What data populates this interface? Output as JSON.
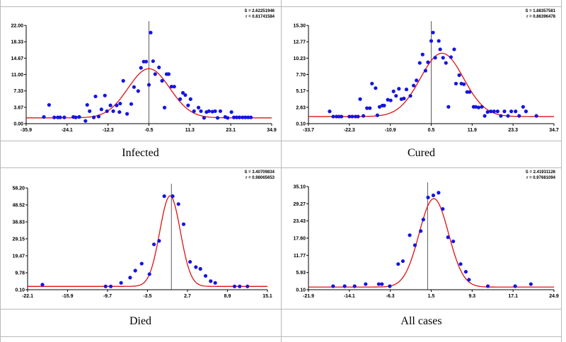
{
  "colors": {
    "points": "#1515e0",
    "curve": "#e01010",
    "axis": "#000000",
    "mean_line": "#333333"
  },
  "charts": [
    {
      "caption": "Infected",
      "stats": {
        "s": "S = 2.62251946",
        "r": "r = 0.81741584"
      },
      "chart_data": {
        "type": "scatter",
        "title": "",
        "xlabel": "",
        "ylabel": "",
        "xlim": [
          -35.9,
          34.9
        ],
        "ylim": [
          0.0,
          22.0
        ],
        "xticks": [
          "-35.9",
          "-24.1",
          "-12.3",
          "-0.5",
          "11.3",
          "23.1",
          "34.9"
        ],
        "yticks": [
          "0.00",
          "3.67",
          "7.33",
          "11.00",
          "14.67",
          "18.33",
          "22.00"
        ],
        "mean_x": -0.5,
        "curve": {
          "mu": -0.5,
          "sigma": 6.0,
          "amplitude": 11.0,
          "base": 1.3
        },
        "points": [
          [
            -30.8,
            1.5
          ],
          [
            -29.3,
            4.2
          ],
          [
            -27.8,
            1.4
          ],
          [
            -26.8,
            1.4
          ],
          [
            -26.1,
            1.4
          ],
          [
            -24.9,
            1.4
          ],
          [
            -22.3,
            1.5
          ],
          [
            -21.6,
            1.4
          ],
          [
            -20.6,
            1.5
          ],
          [
            -18.8,
            0.6
          ],
          [
            -18.3,
            4.2
          ],
          [
            -17.6,
            2.8
          ],
          [
            -16.4,
            1.4
          ],
          [
            -15.9,
            6.1
          ],
          [
            -15.0,
            1.6
          ],
          [
            -14.2,
            3.2
          ],
          [
            -13.2,
            6.3
          ],
          [
            -12.6,
            2.8
          ],
          [
            -11.6,
            4.1
          ],
          [
            -10.8,
            2.8
          ],
          [
            -9.8,
            4.1
          ],
          [
            -9.0,
            2.6
          ],
          [
            -8.8,
            4.5
          ],
          [
            -7.9,
            9.6
          ],
          [
            -6.8,
            2.2
          ],
          [
            -5.6,
            4.4
          ],
          [
            -4.8,
            8.2
          ],
          [
            -3.6,
            7.3
          ],
          [
            -2.8,
            12.5
          ],
          [
            -2.0,
            13.9
          ],
          [
            -1.3,
            13.9
          ],
          [
            -0.5,
            8.7
          ],
          [
            0.0,
            20.4
          ],
          [
            0.7,
            14.0
          ],
          [
            1.3,
            11.1
          ],
          [
            2.4,
            12.6
          ],
          [
            3.3,
            9.6
          ],
          [
            4.0,
            3.6
          ],
          [
            4.6,
            11.1
          ],
          [
            5.2,
            11.1
          ],
          [
            6.0,
            8.3
          ],
          [
            6.8,
            8.3
          ],
          [
            8.5,
            5.5
          ],
          [
            9.3,
            6.9
          ],
          [
            10.0,
            6.4
          ],
          [
            10.8,
            4.1
          ],
          [
            11.5,
            5.5
          ],
          [
            12.5,
            2.8
          ],
          [
            13.8,
            3.6
          ],
          [
            14.5,
            2.8
          ],
          [
            15.4,
            1.3
          ],
          [
            16.1,
            2.6
          ],
          [
            16.8,
            2.8
          ],
          [
            17.8,
            2.7
          ],
          [
            18.6,
            2.8
          ],
          [
            19.3,
            1.3
          ],
          [
            20.1,
            2.8
          ],
          [
            21.5,
            1.5
          ],
          [
            22.2,
            1.3
          ],
          [
            23.3,
            2.6
          ],
          [
            24.0,
            1.4
          ],
          [
            24.8,
            1.4
          ],
          [
            25.6,
            1.4
          ],
          [
            26.5,
            1.4
          ],
          [
            27.3,
            1.4
          ],
          [
            28.1,
            1.4
          ],
          [
            28.9,
            1.4
          ]
        ]
      }
    },
    {
      "caption": "Cured",
      "stats": {
        "s": "S = 1.88357581",
        "r": "r = 0.86396478"
      },
      "chart_data": {
        "type": "scatter",
        "title": "",
        "xlabel": "",
        "ylabel": "",
        "xlim": [
          -33.7,
          34.7
        ],
        "ylim": [
          0.1,
          15.3
        ],
        "xticks": [
          "-33.7",
          "-22.3",
          "-10.9",
          "0.5",
          "11.9",
          "23.3",
          "34.7"
        ],
        "yticks": [
          "0.10",
          "2.63",
          "5.17",
          "7.70",
          "10.23",
          "12.77",
          "15.30"
        ],
        "mean_x": 0.5,
        "curve": {
          "mu": 3.5,
          "sigma": 6.0,
          "amplitude": 9.8,
          "base": 1.2
        },
        "points": [
          [
            -27.8,
            2.0
          ],
          [
            -26.8,
            1.2
          ],
          [
            -25.9,
            1.2
          ],
          [
            -25.2,
            1.2
          ],
          [
            -24.5,
            1.2
          ],
          [
            -22.3,
            1.2
          ],
          [
            -21.5,
            1.2
          ],
          [
            -20.6,
            1.2
          ],
          [
            -19.9,
            1.2
          ],
          [
            -19.3,
            3.9
          ],
          [
            -18.4,
            1.3
          ],
          [
            -17.4,
            2.5
          ],
          [
            -16.6,
            2.5
          ],
          [
            -16.0,
            6.3
          ],
          [
            -15.0,
            5.6
          ],
          [
            -14.5,
            1.4
          ],
          [
            -13.9,
            2.7
          ],
          [
            -13.1,
            2.9
          ],
          [
            -12.6,
            2.9
          ],
          [
            -11.6,
            3.8
          ],
          [
            -10.8,
            3.7
          ],
          [
            -10.0,
            5.1
          ],
          [
            -9.3,
            4.4
          ],
          [
            -8.5,
            5.5
          ],
          [
            -7.8,
            3.9
          ],
          [
            -7.1,
            4.0
          ],
          [
            -6.4,
            5.4
          ],
          [
            -5.3,
            4.4
          ],
          [
            -4.4,
            6.0
          ],
          [
            -3.6,
            6.8
          ],
          [
            -2.7,
            9.5
          ],
          [
            -1.9,
            10.8
          ],
          [
            -1.1,
            8.3
          ],
          [
            -0.4,
            9.6
          ],
          [
            0.5,
            12.9
          ],
          [
            1.0,
            14.2
          ],
          [
            1.6,
            10.3
          ],
          [
            2.6,
            12.9
          ],
          [
            3.0,
            11.6
          ],
          [
            3.8,
            10.3
          ],
          [
            4.6,
            9.5
          ],
          [
            5.3,
            2.7
          ],
          [
            6.0,
            10.4
          ],
          [
            6.9,
            11.6
          ],
          [
            7.4,
            6.3
          ],
          [
            8.3,
            7.6
          ],
          [
            8.9,
            6.3
          ],
          [
            9.6,
            6.2
          ],
          [
            10.5,
            5.0
          ],
          [
            11.2,
            5.0
          ],
          [
            12.3,
            2.7
          ],
          [
            12.9,
            2.7
          ],
          [
            13.7,
            2.6
          ],
          [
            14.6,
            2.7
          ],
          [
            15.4,
            1.3
          ],
          [
            16.2,
            1.9
          ],
          [
            17.1,
            2.0
          ],
          [
            18.0,
            2.0
          ],
          [
            19.0,
            2.0
          ],
          [
            19.9,
            1.3
          ],
          [
            20.9,
            2.0
          ],
          [
            21.9,
            1.3
          ],
          [
            22.8,
            2.0
          ],
          [
            24.0,
            2.0
          ],
          [
            25.0,
            1.3
          ],
          [
            26.1,
            2.7
          ],
          [
            26.9,
            2.0
          ],
          [
            29.8,
            1.3
          ]
        ]
      }
    },
    {
      "caption": "Died",
      "stats": {
        "s": "S = 3.40709834",
        "r": "r = 0.98065653"
      },
      "chart_data": {
        "type": "scatter",
        "title": "",
        "xlabel": "",
        "ylabel": "",
        "xlim": [
          -22.1,
          15.1
        ],
        "ylim": [
          0.1,
          58.2
        ],
        "xticks": [
          "-22.1",
          "-15.9",
          "-9.7",
          "-3.5",
          "2.7",
          "8.9",
          "15.1"
        ],
        "yticks": [
          "0.10",
          "9.78",
          "19.47",
          "29.15",
          "38.83",
          "48.52",
          "58.20"
        ],
        "mean_x": 0.2,
        "curve": {
          "mu": 0.0,
          "sigma": 1.6,
          "amplitude": 51.7,
          "base": 2.0
        },
        "points": [
          [
            -19.8,
            3.0
          ],
          [
            -10.0,
            2.0
          ],
          [
            -9.2,
            2.0
          ],
          [
            -7.6,
            4.0
          ],
          [
            -6.2,
            7.0
          ],
          [
            -5.4,
            11.0
          ],
          [
            -4.4,
            15.0
          ],
          [
            -3.2,
            9.0
          ],
          [
            -2.5,
            26.0
          ],
          [
            -1.7,
            28.0
          ],
          [
            -0.9,
            53.5
          ],
          [
            0.4,
            53.5
          ],
          [
            1.3,
            49.0
          ],
          [
            2.1,
            37.5
          ],
          [
            3.1,
            16.0
          ],
          [
            4.0,
            13.0
          ],
          [
            4.7,
            12.0
          ],
          [
            5.5,
            8.0
          ],
          [
            6.3,
            5.0
          ],
          [
            7.0,
            4.0
          ],
          [
            10.0,
            2.0
          ],
          [
            10.8,
            2.0
          ],
          [
            12.0,
            2.0
          ]
        ]
      }
    },
    {
      "caption": "All cases",
      "stats": {
        "s": "S = 2.41931126",
        "r": "r = 0.97681094"
      },
      "chart_data": {
        "type": "scatter",
        "title": "",
        "xlabel": "",
        "ylabel": "",
        "xlim": [
          -21.9,
          24.9
        ],
        "ylim": [
          0.1,
          35.1
        ],
        "xticks": [
          "-21.9",
          "-14.1",
          "-6.3",
          "1.5",
          "9.3",
          "17.1",
          "24.9"
        ],
        "yticks": [
          "0.10",
          "5.93",
          "11.77",
          "17.60",
          "23.43",
          "29.27",
          "35.10"
        ],
        "mean_x": 0.8,
        "curve": {
          "mu": 2.0,
          "sigma": 2.8,
          "amplitude": 30.0,
          "base": 1.0
        },
        "points": [
          [
            -17.2,
            1.3
          ],
          [
            -15.0,
            1.3
          ],
          [
            -13.1,
            1.3
          ],
          [
            -11.0,
            2.0
          ],
          [
            -8.5,
            2.0
          ],
          [
            -7.9,
            2.0
          ],
          [
            -6.4,
            1.3
          ],
          [
            -4.8,
            8.8
          ],
          [
            -3.9,
            9.8
          ],
          [
            -2.6,
            18.6
          ],
          [
            -1.6,
            15.2
          ],
          [
            -0.5,
            20.0
          ],
          [
            0.0,
            23.9
          ],
          [
            0.9,
            31.4
          ],
          [
            1.9,
            32.1
          ],
          [
            2.9,
            33.0
          ],
          [
            3.7,
            27.5
          ],
          [
            4.7,
            17.9
          ],
          [
            5.7,
            16.5
          ],
          [
            7.1,
            8.8
          ],
          [
            8.1,
            6.2
          ],
          [
            8.7,
            3.5
          ],
          [
            12.3,
            1.3
          ],
          [
            17.5,
            1.3
          ],
          [
            20.5,
            2.0
          ]
        ]
      }
    }
  ]
}
